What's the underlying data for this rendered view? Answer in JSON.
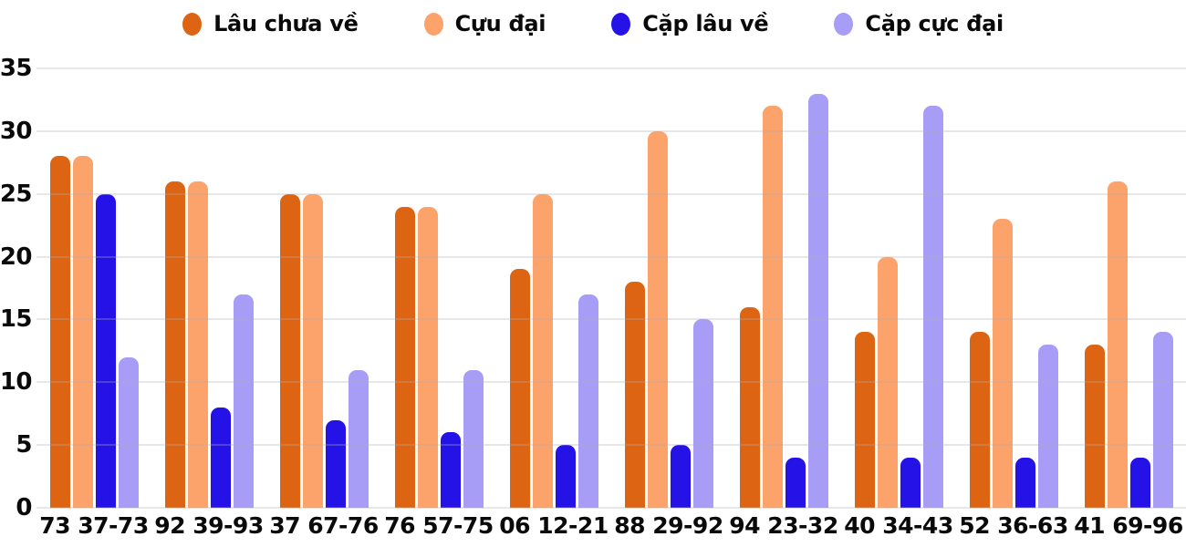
{
  "chart_data": {
    "type": "bar",
    "title": "",
    "xlabel": "",
    "ylabel": "",
    "ylim": [
      0,
      35
    ],
    "yticks": [
      0,
      5,
      10,
      15,
      20,
      25,
      30,
      35
    ],
    "grid": true,
    "grid_color": "#e8e8e8",
    "background_color": "#ffffff",
    "legend_position": "top",
    "categories": [
      "73 37-73",
      "92 39-93",
      "37 67-76",
      "76 57-75",
      "06 12-21",
      "88 29-92",
      "94 23-32",
      "40 34-43",
      "52 36-63",
      "41 69-96"
    ],
    "series": [
      {
        "name": "Lâu chưa về",
        "color": "#DD6413",
        "values": [
          28,
          26,
          25,
          24,
          19,
          18,
          16,
          14,
          14,
          13
        ]
      },
      {
        "name": "Cựu đại",
        "color": "#FCA36B",
        "values": [
          28,
          26,
          25,
          24,
          25,
          30,
          32,
          20,
          23,
          26
        ]
      },
      {
        "name": "Cặp lâu về",
        "color": "#2412E6",
        "values": [
          25,
          8,
          7,
          6,
          5,
          5,
          4,
          4,
          4,
          4
        ]
      },
      {
        "name": "Cặp cực đại",
        "color": "#A79CF6",
        "values": [
          12,
          17,
          11,
          11,
          17,
          15,
          33,
          32,
          13,
          14
        ]
      }
    ]
  }
}
